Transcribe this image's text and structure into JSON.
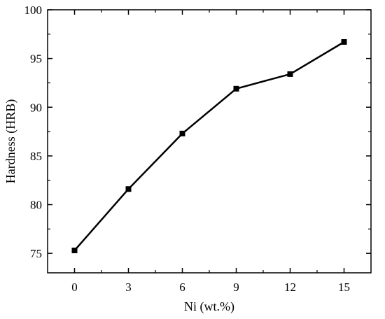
{
  "chart_data": {
    "type": "line",
    "xlabel": "Ni (wt.%)",
    "ylabel": "Hardness (HRB)",
    "x": [
      0,
      3,
      6,
      9,
      12,
      15
    ],
    "xticks": [
      0,
      3,
      6,
      9,
      12,
      15
    ],
    "xlim": [
      -1.5,
      16.5
    ],
    "ylim": [
      73,
      100
    ],
    "yticks": [
      75,
      80,
      85,
      90,
      95,
      100
    ],
    "grid": false,
    "series": [
      {
        "values": [
          75.3,
          81.6,
          87.3,
          91.9,
          93.4,
          96.7
        ],
        "color": "#000000",
        "marker": "square"
      }
    ]
  }
}
